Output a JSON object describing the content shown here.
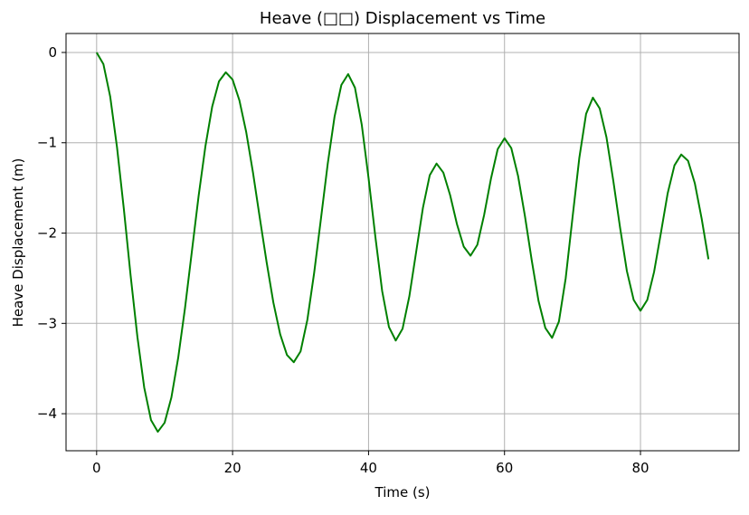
{
  "chart_data": {
    "type": "line",
    "title": "Heave (□□) Displacement vs Time",
    "xlabel": "Time (s)",
    "ylabel": "Heave Displacement (m)",
    "x": [
      0,
      1,
      2,
      3,
      4,
      5,
      6,
      7,
      8,
      9,
      10,
      11,
      12,
      13,
      14,
      15,
      16,
      17,
      18,
      19,
      20,
      21,
      22,
      23,
      24,
      25,
      26,
      27,
      28,
      29,
      30,
      31,
      32,
      33,
      34,
      35,
      36,
      37,
      38,
      39,
      40,
      41,
      42,
      43,
      44,
      45,
      46,
      47,
      48,
      49,
      50,
      51,
      52,
      53,
      54,
      55,
      56,
      57,
      58,
      59,
      60,
      61,
      62,
      63,
      64,
      65,
      66,
      67,
      68,
      69,
      70,
      71,
      72,
      73,
      74,
      75,
      76,
      77,
      78,
      79,
      80,
      81,
      82,
      83,
      84,
      85,
      86,
      87,
      88,
      89,
      90
    ],
    "series": [
      {
        "name": "Heave",
        "color": "#008000",
        "values": [
          0,
          -0.13,
          -0.49,
          -1.05,
          -1.73,
          -2.47,
          -3.15,
          -3.71,
          -4.07,
          -4.2,
          -4.1,
          -3.82,
          -3.38,
          -2.83,
          -2.21,
          -1.59,
          -1.04,
          -0.6,
          -0.32,
          -0.22,
          -0.3,
          -0.53,
          -0.88,
          -1.33,
          -1.83,
          -2.32,
          -2.77,
          -3.12,
          -3.35,
          -3.43,
          -3.31,
          -2.96,
          -2.44,
          -1.84,
          -1.23,
          -0.71,
          -0.36,
          -0.24,
          -0.39,
          -0.8,
          -1.39,
          -2.04,
          -2.64,
          -3.04,
          -3.19,
          -3.06,
          -2.7,
          -2.21,
          -1.72,
          -1.36,
          -1.23,
          -1.33,
          -1.58,
          -1.9,
          -2.15,
          -2.25,
          -2.13,
          -1.8,
          -1.4,
          -1.07,
          -0.95,
          -1.06,
          -1.37,
          -1.81,
          -2.3,
          -2.75,
          -3.05,
          -3.16,
          -2.98,
          -2.5,
          -1.83,
          -1.17,
          -0.68,
          -0.5,
          -0.62,
          -0.94,
          -1.42,
          -1.94,
          -2.42,
          -2.74,
          -2.86,
          -2.74,
          -2.43,
          -2.0,
          -1.56,
          -1.25,
          -1.13,
          -1.2,
          -1.45,
          -1.84,
          -2.29
        ]
      }
    ],
    "xlim": [
      -4.5,
      94.5
    ],
    "ylim": [
      -4.41,
      0.21
    ],
    "xticks": [
      0,
      20,
      40,
      60,
      80
    ],
    "yticks": [
      {
        "value": 0,
        "label": "0"
      },
      {
        "value": -1,
        "label": "−1"
      },
      {
        "value": -2,
        "label": "−2"
      },
      {
        "value": -3,
        "label": "−3"
      },
      {
        "value": -4,
        "label": "−4"
      }
    ],
    "grid": true
  }
}
